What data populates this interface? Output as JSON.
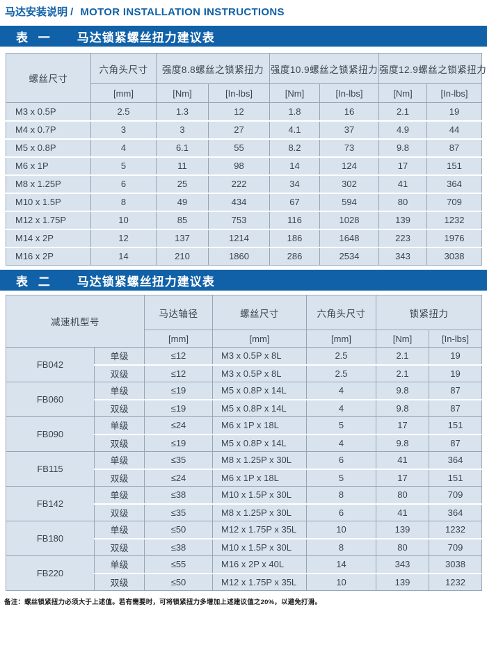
{
  "page": {
    "title_zh": "马达安装说明 /",
    "title_en": "MOTOR INSTALLATION INSTRUCTIONS",
    "note": "备注：螺丝锁紧扭力必须大于上述值。若有需要时，可将锁紧扭力多增加上述建议值之20%，以避免打滑。"
  },
  "colors": {
    "accent_blue": "#1161a8",
    "cell_background": "#d9e3ee",
    "grid_gray": "#96a4b4",
    "cell_text": "#3a444e"
  },
  "table1": {
    "banner_label": "表 一",
    "banner_title": "马达锁紧螺丝扭力建议表",
    "col_screw": "螺丝尺寸",
    "col_hex": "六角头尺寸",
    "group_88": "强度8.8螺丝之锁紧扭力",
    "group_109": "强度10.9螺丝之锁紧扭力",
    "group_129": "强度12.9螺丝之锁紧扭力",
    "unit_mm": "[mm]",
    "unit_nm": "[Nm]",
    "unit_inlbs": "[In-lbs]",
    "rows": [
      [
        "M3 x 0.5P",
        "2.5",
        "1.3",
        "12",
        "1.8",
        "16",
        "2.1",
        "19"
      ],
      [
        "M4 x 0.7P",
        "3",
        "3",
        "27",
        "4.1",
        "37",
        "4.9",
        "44"
      ],
      [
        "M5 x 0.8P",
        "4",
        "6.1",
        "55",
        "8.2",
        "73",
        "9.8",
        "87"
      ],
      [
        "M6 x 1P",
        "5",
        "11",
        "98",
        "14",
        "124",
        "17",
        "151"
      ],
      [
        "M8 x 1.25P",
        "6",
        "25",
        "222",
        "34",
        "302",
        "41",
        "364"
      ],
      [
        "M10 x 1.5P",
        "8",
        "49",
        "434",
        "67",
        "594",
        "80",
        "709"
      ],
      [
        "M12 x 1.75P",
        "10",
        "85",
        "753",
        "116",
        "1028",
        "139",
        "1232"
      ],
      [
        "M14 x 2P",
        "12",
        "137",
        "1214",
        "186",
        "1648",
        "223",
        "1976"
      ],
      [
        "M16 x 2P",
        "14",
        "210",
        "1860",
        "286",
        "2534",
        "343",
        "3038"
      ]
    ]
  },
  "table2": {
    "banner_label": "表 二",
    "banner_title": "马达锁紧螺丝扭力建议表",
    "col_model": "减速机型号",
    "col_shaft": "马达轴径",
    "col_screw": "螺丝尺寸",
    "col_hex": "六角头尺寸",
    "col_torque": "锁紧扭力",
    "unit_mm": "[mm]",
    "unit_nm": "[Nm]",
    "unit_inlbs": "[In-lbs]",
    "groups": [
      {
        "model": "FB042",
        "rows": [
          {
            "stage": "单级",
            "shaft": "≤12",
            "screw": "M3 x 0.5P x 8L",
            "hex": "2.5",
            "nm": "2.1",
            "inlbs": "19"
          },
          {
            "stage": "双级",
            "shaft": "≤12",
            "screw": "M3 x 0.5P x 8L",
            "hex": "2.5",
            "nm": "2.1",
            "inlbs": "19"
          }
        ]
      },
      {
        "model": "FB060",
        "rows": [
          {
            "stage": "单级",
            "shaft": "≤19",
            "screw": "M5 x 0.8P x 14L",
            "hex": "4",
            "nm": "9.8",
            "inlbs": "87"
          },
          {
            "stage": "双级",
            "shaft": "≤19",
            "screw": "M5 x 0.8P x 14L",
            "hex": "4",
            "nm": "9.8",
            "inlbs": "87"
          }
        ]
      },
      {
        "model": "FB090",
        "rows": [
          {
            "stage": "单级",
            "shaft": "≤24",
            "screw": "M6 x 1P x 18L",
            "hex": "5",
            "nm": "17",
            "inlbs": "151"
          },
          {
            "stage": "双级",
            "shaft": "≤19",
            "screw": "M5 x 0.8P x 14L",
            "hex": "4",
            "nm": "9.8",
            "inlbs": "87"
          }
        ]
      },
      {
        "model": "FB115",
        "rows": [
          {
            "stage": "单级",
            "shaft": "≤35",
            "screw": "M8 x 1.25P x 30L",
            "hex": "6",
            "nm": "41",
            "inlbs": "364"
          },
          {
            "stage": "双级",
            "shaft": "≤24",
            "screw": "M6 x 1P x 18L",
            "hex": "5",
            "nm": "17",
            "inlbs": "151"
          }
        ]
      },
      {
        "model": "FB142",
        "rows": [
          {
            "stage": "单级",
            "shaft": "≤38",
            "screw": "M10 x 1.5P x 30L",
            "hex": "8",
            "nm": "80",
            "inlbs": "709"
          },
          {
            "stage": "双级",
            "shaft": "≤35",
            "screw": "M8 x 1.25P x 30L",
            "hex": "6",
            "nm": "41",
            "inlbs": "364"
          }
        ]
      },
      {
        "model": "FB180",
        "rows": [
          {
            "stage": "单级",
            "shaft": "≤50",
            "screw": "M12 x 1.75P x 35L",
            "hex": "10",
            "nm": "139",
            "inlbs": "1232"
          },
          {
            "stage": "双级",
            "shaft": "≤38",
            "screw": "M10 x 1.5P x 30L",
            "hex": "8",
            "nm": "80",
            "inlbs": "709"
          }
        ]
      },
      {
        "model": "FB220",
        "rows": [
          {
            "stage": "单级",
            "shaft": "≤55",
            "screw": "M16 x 2P x 40L",
            "hex": "14",
            "nm": "343",
            "inlbs": "3038"
          },
          {
            "stage": "双级",
            "shaft": "≤50",
            "screw": "M12 x 1.75P x 35L",
            "hex": "10",
            "nm": "139",
            "inlbs": "1232"
          }
        ]
      }
    ]
  }
}
